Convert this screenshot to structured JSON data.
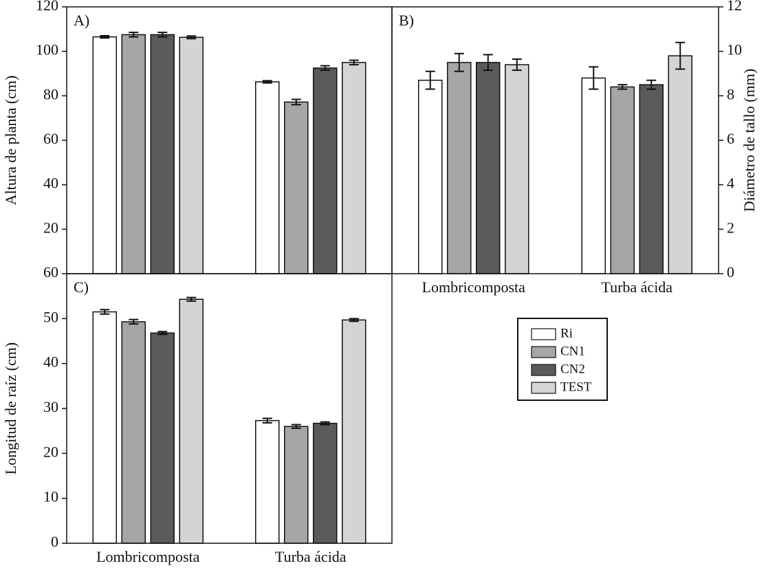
{
  "chart_data": [
    {
      "type": "bar",
      "panel_label": "A)",
      "ylabel": "Altura de planta (cm)",
      "y_axis_position": "left",
      "categories": [
        null,
        null
      ],
      "ylim": [
        0,
        120
      ],
      "yticks": [
        20,
        40,
        60,
        80,
        100,
        120
      ],
      "series": [
        {
          "color": "#ffffff",
          "values": [
            106.5,
            86.3
          ],
          "errors": [
            0.5,
            0.5
          ]
        },
        {
          "color": "#a6a6a6",
          "values": [
            107.5,
            77.2
          ],
          "errors": [
            1,
            1.2
          ]
        },
        {
          "color": "#5a5a5a",
          "values": [
            107.5,
            92.5
          ],
          "errors": [
            1,
            1
          ]
        },
        {
          "color": "#d4d4d4",
          "values": [
            106.3,
            95
          ],
          "errors": [
            0.6,
            1
          ]
        }
      ]
    },
    {
      "type": "bar",
      "panel_label": "B)",
      "ylabel": "Diámetro de tallo (mm)",
      "y_axis_position": "right",
      "categories": [
        "Lombricomposta",
        "Turba ácida"
      ],
      "ylim": [
        0,
        12
      ],
      "yticks": [
        0,
        2,
        4,
        6,
        8,
        10,
        12
      ],
      "series": [
        {
          "color": "#ffffff",
          "values": [
            8.7,
            8.8
          ],
          "errors": [
            0.4,
            0.5
          ]
        },
        {
          "color": "#a6a6a6",
          "values": [
            9.5,
            8.4
          ],
          "errors": [
            0.4,
            0.1
          ]
        },
        {
          "color": "#5a5a5a",
          "values": [
            9.5,
            8.5
          ],
          "errors": [
            0.35,
            0.2
          ]
        },
        {
          "color": "#d4d4d4",
          "values": [
            9.4,
            9.8
          ],
          "errors": [
            0.25,
            0.6
          ]
        }
      ]
    },
    {
      "type": "bar",
      "panel_label": "C)",
      "ylabel": "Longitud de raíz (cm)",
      "y_axis_position": "left",
      "categories": [
        "Lombricomposta",
        "Turba ácida"
      ],
      "ylim": [
        0,
        60
      ],
      "yticks": [
        0,
        10,
        20,
        30,
        40,
        50,
        60
      ],
      "series": [
        {
          "name": "Ri",
          "color": "#ffffff",
          "values": [
            51.5,
            27.3
          ],
          "errors": [
            0.5,
            0.5
          ]
        },
        {
          "name": "CN1",
          "color": "#a6a6a6",
          "values": [
            49.3,
            26
          ],
          "errors": [
            0.5,
            0.4
          ]
        },
        {
          "name": "CN2",
          "color": "#5a5a5a",
          "values": [
            46.8,
            26.7
          ],
          "errors": [
            0.3,
            0.3
          ]
        },
        {
          "name": "TEST",
          "color": "#d4d4d4",
          "values": [
            54.3,
            49.7
          ],
          "errors": [
            0.4,
            0.3
          ]
        }
      ]
    }
  ]
}
